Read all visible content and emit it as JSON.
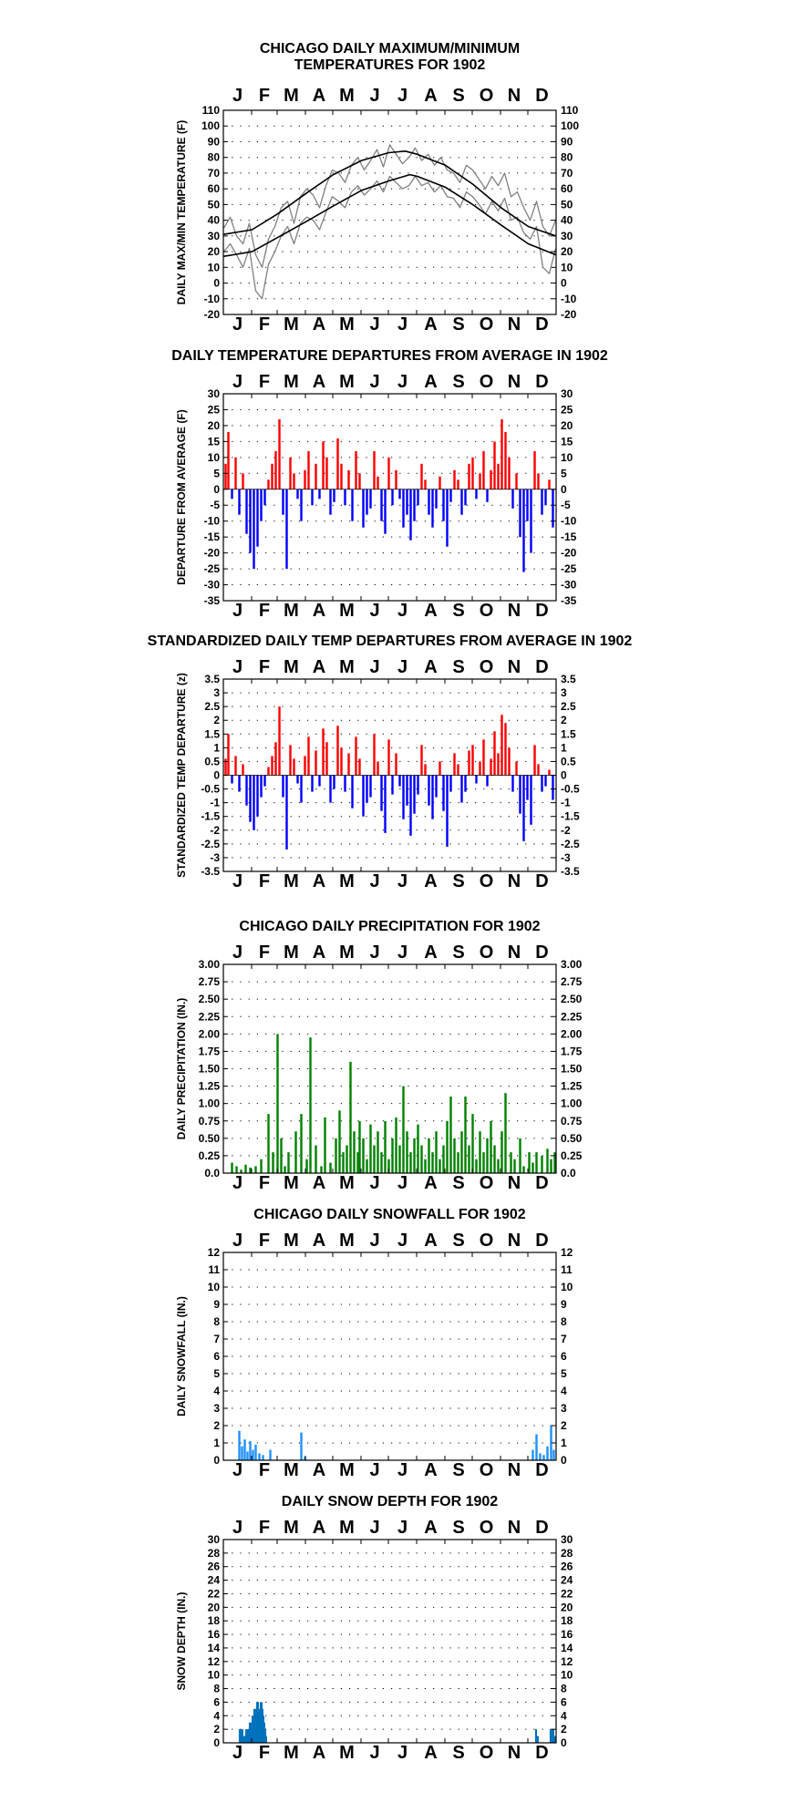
{
  "colors": {
    "above_average": "#ff0000",
    "below_average": "#0000ff",
    "precipitation": "#008000",
    "snowfall": "#1e90ff",
    "snow_depth": "#0072bc",
    "daily_temperature": "#808080",
    "normal_curve": "#000000"
  },
  "chart_data": [
    {
      "id": "temperature",
      "type": "line",
      "title": [
        "CHICAGO DAILY MAXIMUM/MINIMUM",
        "TEMPERATURES FOR 1902"
      ],
      "ylabel": "DAILY MAX/MIN TEMPERATURE (F)",
      "months": [
        "J",
        "F",
        "M",
        "A",
        "M",
        "J",
        "J",
        "A",
        "S",
        "O",
        "N",
        "D"
      ],
      "ylim": [
        -20,
        110
      ],
      "yticks": [
        -20,
        -10,
        0,
        10,
        20,
        30,
        40,
        50,
        60,
        70,
        80,
        90,
        100,
        110
      ],
      "grid": true,
      "x_unit": "day of year",
      "series": [
        {
          "role": "normal high",
          "x": [
            1,
            32,
            60,
            91,
            121,
            152,
            182,
            200,
            213,
            244,
            274,
            305,
            335,
            365
          ],
          "y": [
            31,
            34,
            44,
            57,
            69,
            78,
            83,
            84,
            82,
            75,
            63,
            48,
            36,
            30
          ]
        },
        {
          "role": "normal low",
          "x": [
            1,
            32,
            60,
            91,
            121,
            152,
            182,
            205,
            213,
            244,
            274,
            305,
            335,
            365
          ],
          "y": [
            17,
            20,
            29,
            39,
            49,
            59,
            65,
            69,
            68,
            61,
            50,
            37,
            25,
            18
          ]
        },
        {
          "role": "daily high",
          "x": [
            1,
            8,
            15,
            22,
            29,
            36,
            43,
            50,
            57,
            64,
            71,
            78,
            85,
            92,
            99,
            106,
            113,
            120,
            127,
            134,
            141,
            148,
            155,
            162,
            169,
            176,
            183,
            190,
            197,
            204,
            211,
            218,
            225,
            232,
            239,
            246,
            253,
            260,
            267,
            274,
            281,
            288,
            295,
            302,
            309,
            316,
            323,
            330,
            337,
            344,
            351,
            358,
            365
          ],
          "y": [
            35,
            42,
            30,
            25,
            38,
            18,
            10,
            28,
            36,
            48,
            52,
            38,
            55,
            60,
            56,
            48,
            62,
            72,
            70,
            64,
            75,
            80,
            72,
            78,
            85,
            74,
            88,
            82,
            76,
            80,
            86,
            78,
            82,
            75,
            80,
            72,
            70,
            64,
            75,
            72,
            66,
            60,
            68,
            62,
            70,
            55,
            58,
            48,
            40,
            52,
            36,
            30,
            40
          ]
        },
        {
          "role": "daily low",
          "x": [
            1,
            8,
            15,
            22,
            29,
            36,
            43,
            50,
            57,
            64,
            71,
            78,
            85,
            92,
            99,
            106,
            113,
            120,
            127,
            134,
            141,
            148,
            155,
            162,
            169,
            176,
            183,
            190,
            197,
            204,
            211,
            218,
            225,
            232,
            239,
            246,
            253,
            260,
            267,
            274,
            281,
            288,
            295,
            302,
            309,
            316,
            323,
            330,
            337,
            344,
            351,
            358,
            365
          ],
          "y": [
            20,
            25,
            18,
            10,
            22,
            -5,
            -10,
            12,
            20,
            30,
            36,
            25,
            38,
            42,
            40,
            34,
            45,
            55,
            52,
            48,
            58,
            62,
            56,
            60,
            65,
            58,
            68,
            64,
            60,
            62,
            68,
            62,
            64,
            58,
            62,
            55,
            54,
            48,
            58,
            55,
            50,
            44,
            52,
            46,
            54,
            40,
            42,
            32,
            28,
            36,
            10,
            6,
            22
          ]
        }
      ]
    },
    {
      "id": "departure",
      "type": "bar",
      "title": [
        "DAILY TEMPERATURE DEPARTURES FROM AVERAGE IN 1902"
      ],
      "ylabel": "DEPARTURE FROM AVERAGE (F)",
      "months": [
        "J",
        "F",
        "M",
        "A",
        "M",
        "J",
        "J",
        "A",
        "S",
        "O",
        "N",
        "D"
      ],
      "ylim": [
        -35,
        30
      ],
      "yticks": [
        -35,
        -30,
        -25,
        -20,
        -15,
        -10,
        -5,
        0,
        5,
        10,
        15,
        20,
        25,
        30
      ],
      "grid": true,
      "x_unit": "day of year",
      "x": [
        3,
        6,
        10,
        14,
        18,
        22,
        26,
        30,
        34,
        38,
        42,
        46,
        50,
        54,
        58,
        62,
        66,
        70,
        74,
        78,
        82,
        86,
        90,
        94,
        98,
        102,
        106,
        110,
        114,
        118,
        122,
        126,
        130,
        134,
        138,
        142,
        146,
        150,
        154,
        158,
        162,
        166,
        170,
        174,
        178,
        182,
        186,
        190,
        194,
        198,
        202,
        206,
        210,
        214,
        218,
        222,
        226,
        230,
        234,
        238,
        242,
        246,
        250,
        254,
        258,
        262,
        266,
        270,
        274,
        278,
        282,
        286,
        290,
        294,
        298,
        302,
        306,
        310,
        314,
        318,
        322,
        326,
        330,
        334,
        338,
        342,
        346,
        350,
        354,
        358,
        362
      ],
      "values": [
        8,
        18,
        -3,
        10,
        -8,
        5,
        -14,
        -20,
        -25,
        -18,
        -10,
        -5,
        3,
        8,
        12,
        22,
        -8,
        -25,
        10,
        5,
        -3,
        -10,
        6,
        12,
        -5,
        8,
        -3,
        15,
        10,
        -8,
        -4,
        16,
        8,
        -5,
        6,
        -10,
        12,
        5,
        -12,
        -8,
        -6,
        12,
        4,
        -10,
        -14,
        10,
        -5,
        6,
        -3,
        -12,
        -8,
        -16,
        -10,
        -5,
        8,
        3,
        -8,
        -12,
        -6,
        4,
        -10,
        -18,
        -4,
        6,
        3,
        -8,
        -5,
        8,
        10,
        -3,
        5,
        12,
        -4,
        6,
        15,
        8,
        22,
        18,
        10,
        -6,
        5,
        -15,
        -26,
        -10,
        -20,
        12,
        5,
        -8,
        -5,
        3,
        -12
      ],
      "days": 365
    },
    {
      "id": "standardized",
      "type": "bar",
      "title": [
        "STANDARDIZED DAILY TEMP DEPARTURES FROM AVERAGE IN 1902"
      ],
      "ylabel": "STANDARDIZED TEMP DEPARTURE (z)",
      "months": [
        "J",
        "F",
        "M",
        "A",
        "M",
        "J",
        "J",
        "A",
        "S",
        "O",
        "N",
        "D"
      ],
      "ylim": [
        -3.5,
        3.5
      ],
      "yticks": [
        -3.5,
        -3.0,
        -2.5,
        -2.0,
        -1.5,
        -1.0,
        -0.5,
        0.0,
        0.5,
        1.0,
        1.5,
        2.0,
        2.5,
        3.0,
        3.5
      ],
      "grid": true,
      "x_unit": "day of year",
      "x": [
        3,
        6,
        10,
        14,
        18,
        22,
        26,
        30,
        34,
        38,
        42,
        46,
        50,
        54,
        58,
        62,
        66,
        70,
        74,
        78,
        82,
        86,
        90,
        94,
        98,
        102,
        106,
        110,
        114,
        118,
        122,
        126,
        130,
        134,
        138,
        142,
        146,
        150,
        154,
        158,
        162,
        166,
        170,
        174,
        178,
        182,
        186,
        190,
        194,
        198,
        202,
        206,
        210,
        214,
        218,
        222,
        226,
        230,
        234,
        238,
        242,
        246,
        250,
        254,
        258,
        262,
        266,
        270,
        274,
        278,
        282,
        286,
        290,
        294,
        298,
        302,
        306,
        310,
        314,
        318,
        322,
        326,
        330,
        334,
        338,
        342,
        346,
        350,
        354,
        358,
        362
      ],
      "values": [
        0.6,
        1.5,
        -0.3,
        0.7,
        -0.6,
        0.4,
        -1.1,
        -1.7,
        -2.0,
        -1.5,
        -0.8,
        -0.4,
        0.3,
        0.7,
        1.2,
        2.5,
        -0.8,
        -2.7,
        1.1,
        0.6,
        -0.3,
        -1.0,
        0.7,
        1.4,
        -0.6,
        0.9,
        -0.4,
        1.7,
        1.2,
        -1.0,
        -0.5,
        1.8,
        1.0,
        -0.6,
        0.8,
        -1.2,
        1.4,
        0.6,
        -1.5,
        -1.0,
        -0.8,
        1.5,
        0.5,
        -1.3,
        -2.1,
        1.3,
        -0.7,
        0.8,
        -0.4,
        -1.6,
        -1.1,
        -2.2,
        -1.4,
        -0.7,
        1.1,
        0.4,
        -1.1,
        -1.6,
        -0.8,
        0.5,
        -1.3,
        -2.6,
        -0.6,
        0.8,
        0.4,
        -1.0,
        -0.6,
        0.9,
        1.1,
        -0.3,
        0.5,
        1.3,
        -0.4,
        0.6,
        1.6,
        0.8,
        2.2,
        1.9,
        1.0,
        -0.6,
        0.5,
        -1.4,
        -2.4,
        -0.9,
        -1.8,
        1.1,
        0.4,
        -0.6,
        -0.4,
        0.2,
        -0.9
      ],
      "days": 365
    },
    {
      "id": "precipitation",
      "type": "bar",
      "title": [
        "CHICAGO DAILY PRECIPITATION FOR 1902"
      ],
      "ylabel": "DAILY PRECIPITATION (IN.)",
      "months": [
        "J",
        "F",
        "M",
        "A",
        "M",
        "J",
        "J",
        "A",
        "S",
        "O",
        "N",
        "D"
      ],
      "ylim": [
        0,
        3
      ],
      "yticks": [
        "0.0",
        "0.25",
        "0.50",
        "0.75",
        "1.00",
        "1.25",
        "1.50",
        "1.75",
        "2.00",
        "2.25",
        "2.50",
        "2.75",
        "3.00"
      ],
      "grid": true,
      "x_unit": "day of year",
      "x": [
        10,
        15,
        20,
        25,
        30,
        36,
        42,
        50,
        55,
        60,
        64,
        68,
        72,
        80,
        86,
        92,
        96,
        102,
        108,
        112,
        118,
        124,
        128,
        132,
        136,
        140,
        144,
        148,
        150,
        154,
        158,
        162,
        166,
        170,
        174,
        178,
        182,
        186,
        190,
        194,
        198,
        202,
        206,
        210,
        214,
        218,
        222,
        226,
        230,
        234,
        238,
        242,
        246,
        250,
        254,
        258,
        262,
        266,
        270,
        274,
        278,
        282,
        286,
        290,
        294,
        298,
        302,
        306,
        310,
        316,
        320,
        326,
        330,
        336,
        340,
        344,
        350,
        356,
        360,
        364
      ],
      "values": [
        0.15,
        0.1,
        0.05,
        0.12,
        0.08,
        0.1,
        0.2,
        0.85,
        0.3,
        2.0,
        0.5,
        0.1,
        0.3,
        0.6,
        0.85,
        0.2,
        1.95,
        0.4,
        0.1,
        0.8,
        0.15,
        0.5,
        0.9,
        0.3,
        0.4,
        1.6,
        0.6,
        0.3,
        0.75,
        0.5,
        0.2,
        0.7,
        0.4,
        0.6,
        0.3,
        0.75,
        0.2,
        0.5,
        0.8,
        0.4,
        1.25,
        0.6,
        0.3,
        0.5,
        0.7,
        0.4,
        0.2,
        0.5,
        0.3,
        0.6,
        0.2,
        0.4,
        0.75,
        1.1,
        0.5,
        0.3,
        0.6,
        1.1,
        0.4,
        0.85,
        0.2,
        0.6,
        0.3,
        0.5,
        0.75,
        0.4,
        0.2,
        0.6,
        1.15,
        0.3,
        0.2,
        0.5,
        0.1,
        0.3,
        0.15,
        0.3,
        0.25,
        0.35,
        0.2,
        0.3
      ],
      "days": 365
    },
    {
      "id": "snowfall",
      "type": "bar",
      "title": [
        "CHICAGO DAILY SNOWFALL FOR 1902"
      ],
      "ylabel": "DAILY SNOWFALL (IN.)",
      "months": [
        "J",
        "F",
        "M",
        "A",
        "M",
        "J",
        "J",
        "A",
        "S",
        "O",
        "N",
        "D"
      ],
      "ylim": [
        0,
        12
      ],
      "yticks": [
        0,
        1,
        2,
        3,
        4,
        5,
        6,
        7,
        8,
        9,
        10,
        11,
        12
      ],
      "grid": true,
      "x_unit": "day of year",
      "x": [
        18,
        21,
        24,
        27,
        30,
        33,
        36,
        40,
        44,
        52,
        86,
        90,
        340,
        344,
        348,
        352,
        356,
        360,
        363
      ],
      "values": [
        1.7,
        0.8,
        1.2,
        0.5,
        1.1,
        0.6,
        0.9,
        0.4,
        0.3,
        0.6,
        1.6,
        0.2,
        0.6,
        1.5,
        0.4,
        0.3,
        0.8,
        2.0,
        0.6
      ],
      "days": 365
    },
    {
      "id": "snowdepth",
      "type": "area",
      "title": [
        "DAILY SNOW DEPTH FOR 1902"
      ],
      "ylabel": "SNOW DEPTH (IN.)",
      "months": [
        "J",
        "F",
        "M",
        "A",
        "M",
        "J",
        "J",
        "A",
        "S",
        "O",
        "N",
        "D"
      ],
      "ylim": [
        0,
        30
      ],
      "yticks": [
        0,
        2,
        4,
        6,
        8,
        10,
        12,
        14,
        16,
        18,
        20,
        22,
        24,
        26,
        28,
        30
      ],
      "grid": true,
      "x_unit": "day of year",
      "x": [
        18,
        19,
        20,
        21,
        22,
        23,
        24,
        25,
        26,
        27,
        28,
        29,
        30,
        31,
        32,
        33,
        34,
        35,
        36,
        37,
        38,
        39,
        40,
        41,
        42,
        43,
        44,
        45,
        46,
        47,
        48,
        343,
        344,
        345,
        346,
        359,
        360,
        361,
        362,
        363,
        364,
        365
      ],
      "values": [
        2,
        2,
        2,
        2,
        2,
        1,
        1,
        2,
        2,
        2,
        2,
        3,
        3,
        3,
        4,
        4,
        5,
        5,
        5,
        6,
        6,
        6,
        5,
        6,
        6,
        6,
        5,
        4,
        3,
        2,
        1,
        2,
        2,
        1,
        1,
        2,
        2,
        2,
        2,
        2,
        1,
        1
      ],
      "days": 365
    }
  ]
}
